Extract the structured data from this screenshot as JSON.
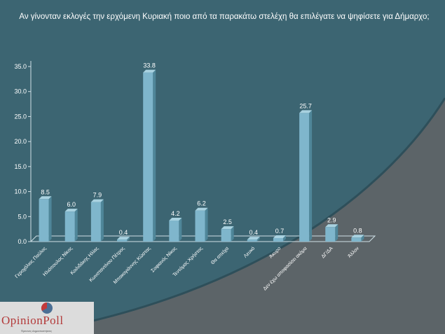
{
  "title": "Αν γίνονταν εκλογές την ερχόμενη Κυριακή ποιο από τα παρακάτω στελέχη θα επιλέγατε να ψηφίσετε για Δήμαρχο;",
  "logo": {
    "name": "OpinionPoll",
    "subtitle": "Έρευνες Δημοσκοπήσεις"
  },
  "colors": {
    "background": "#3c6572",
    "bar": "#7fb6cc",
    "bar_side": "#4f8699",
    "text": "#ffffff"
  },
  "chart_data": {
    "type": "bar",
    "title": "Αν γίνονταν εκλογές την ερχόμενη Κυριακή ποιο από τα παρακάτω στελέχη θα επιλέγατε να ψηφίσετε για Δήμαρχο;",
    "categories": [
      "Γεροχάλιος Παύλος",
      "Ηλιόπουλος Νίκος",
      "Κοιλιδάκης Ηλίας",
      "Κωνσταντίνου Πέτρος",
      "Μπακογιάννης Κώστας",
      "Σοφιανός Νίκος",
      "Τεντόμας Χρήστος",
      "Θα απείχα",
      "Λευκό",
      "Άκυρο",
      "Δεν έχω αποφασίσει ακόμα",
      "ΔΓ/ΔΑ",
      "Άλλον"
    ],
    "values": [
      8.5,
      6.0,
      7.9,
      0.4,
      33.8,
      4.2,
      6.2,
      2.5,
      0.4,
      0.7,
      25.7,
      2.9,
      0.8
    ],
    "value_labels": [
      "8.5",
      "6.0",
      "7.9",
      "0.4",
      "33.8",
      "4.2",
      "6.2",
      "2.5",
      "0.4",
      "0.7",
      "25.7",
      "2.9",
      "0.8"
    ],
    "yticks": [
      "0.0",
      "5.0",
      "10.0",
      "15.0",
      "20.0",
      "25.0",
      "30.0",
      "35.0"
    ],
    "ylim": [
      0,
      35
    ],
    "xlabel": "",
    "ylabel": "",
    "grid": false
  }
}
